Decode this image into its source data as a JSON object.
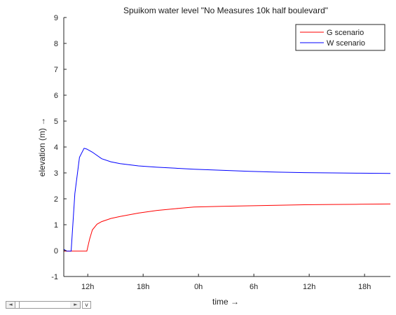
{
  "chart_data": {
    "type": "line",
    "title": "Spuikom water level \"No Measures 10k half boulevard\"",
    "xlabel": "time →",
    "ylabel": "elevation (m) →",
    "xlim": [
      7.9,
      43.3
    ],
    "ylim": [
      -1,
      9
    ],
    "x_ticks": [
      10.5,
      16.5,
      22.5,
      28.5,
      34.5,
      40.5
    ],
    "x_tick_labels": [
      "12h",
      "18h",
      "0h",
      "6h",
      "12h",
      "18h"
    ],
    "y_ticks": [
      -1,
      0,
      1,
      2,
      3,
      4,
      5,
      6,
      7,
      8,
      9
    ],
    "y_tick_labels": [
      "-1",
      "0",
      "1",
      "2",
      "3",
      "4",
      "5",
      "6",
      "7",
      "8",
      "9"
    ],
    "grid": false,
    "legend_position": "top-right",
    "series": [
      {
        "name": "G scenario",
        "color": "#ff0000",
        "x": [
          7.9,
          8.3,
          10.4,
          10.7,
          11.0,
          11.5,
          12.0,
          13.0,
          14.0,
          16.0,
          18.0,
          20.0,
          22.0,
          25.0,
          28.0,
          31.0,
          34.0,
          37.0,
          40.0,
          43.3
        ],
        "y": [
          -0.02,
          -0.02,
          -0.02,
          0.45,
          0.8,
          1.02,
          1.12,
          1.24,
          1.32,
          1.45,
          1.55,
          1.62,
          1.68,
          1.71,
          1.73,
          1.75,
          1.77,
          1.78,
          1.79,
          1.8
        ]
      },
      {
        "name": "W scenario",
        "color": "#0000ff",
        "x": [
          7.9,
          8.2,
          8.7,
          9.1,
          9.6,
          10.1,
          10.4,
          11.0,
          12.0,
          13.0,
          14.0,
          16.0,
          18.0,
          20.0,
          22.0,
          25.0,
          28.0,
          31.0,
          34.0,
          37.0,
          40.0,
          43.3
        ],
        "y": [
          0.05,
          -0.02,
          -0.02,
          2.2,
          3.6,
          3.95,
          3.92,
          3.8,
          3.55,
          3.43,
          3.36,
          3.27,
          3.22,
          3.18,
          3.14,
          3.1,
          3.06,
          3.03,
          3.01,
          3.0,
          2.99,
          2.98
        ]
      }
    ]
  },
  "controls": {
    "scroll_left_glyph": "◄",
    "scroll_right_glyph": "►",
    "dropdown_glyph": "v"
  }
}
